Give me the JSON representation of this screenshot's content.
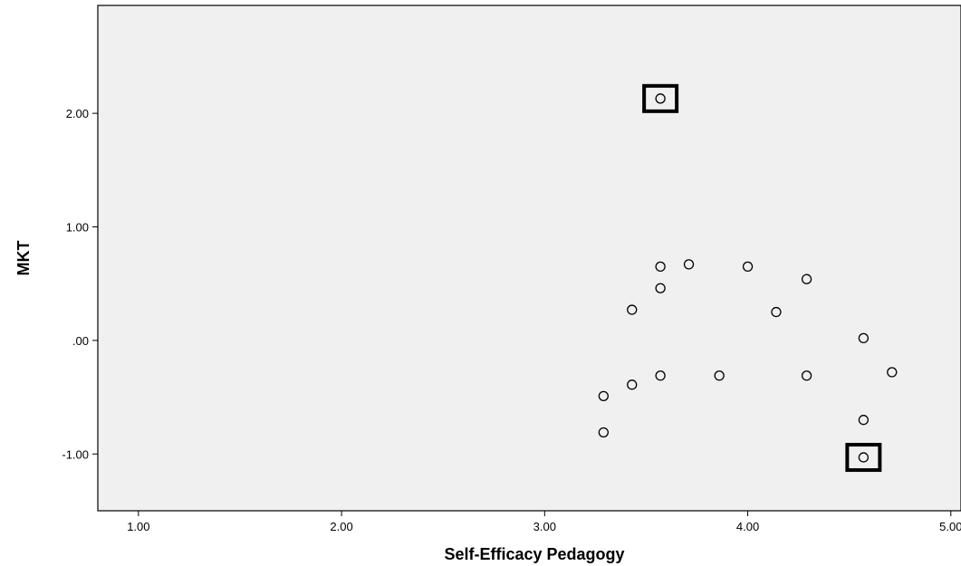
{
  "chart_data": {
    "type": "scatter",
    "title": "",
    "xlabel": "Self-Efficacy Pedagogy",
    "ylabel": "MKT",
    "xlim": [
      0.8,
      5.05
    ],
    "ylim": [
      -1.5,
      2.95
    ],
    "x_ticks": [
      1.0,
      2.0,
      3.0,
      4.0,
      5.0
    ],
    "x_tick_labels": [
      "1.00",
      "2.00",
      "3.00",
      "4.00",
      "5.00"
    ],
    "y_ticks": [
      -1.0,
      0.0,
      1.0,
      2.0
    ],
    "y_tick_labels": [
      "-1.00",
      ".00",
      "1.00",
      "2.00"
    ],
    "grid": false,
    "legend": "none",
    "colors": {
      "plot_background": "#f0f0f0",
      "marker_stroke": "#000000",
      "highlight_box": "#000000"
    },
    "series": [
      {
        "values": [
          {
            "x": 3.57,
            "y": 2.13,
            "highlighted": true
          },
          {
            "x": 3.57,
            "y": 0.65
          },
          {
            "x": 3.71,
            "y": 0.67
          },
          {
            "x": 4.0,
            "y": 0.65
          },
          {
            "x": 4.29,
            "y": 0.54
          },
          {
            "x": 3.57,
            "y": 0.46
          },
          {
            "x": 3.43,
            "y": 0.27
          },
          {
            "x": 4.14,
            "y": 0.25
          },
          {
            "x": 4.57,
            "y": 0.02
          },
          {
            "x": 3.57,
            "y": -0.31
          },
          {
            "x": 3.86,
            "y": -0.31
          },
          {
            "x": 4.29,
            "y": -0.31
          },
          {
            "x": 4.71,
            "y": -0.28
          },
          {
            "x": 3.43,
            "y": -0.39
          },
          {
            "x": 3.29,
            "y": -0.49
          },
          {
            "x": 4.57,
            "y": -0.7
          },
          {
            "x": 3.29,
            "y": -0.81
          },
          {
            "x": 4.57,
            "y": -1.03,
            "highlighted": true
          }
        ]
      }
    ]
  }
}
